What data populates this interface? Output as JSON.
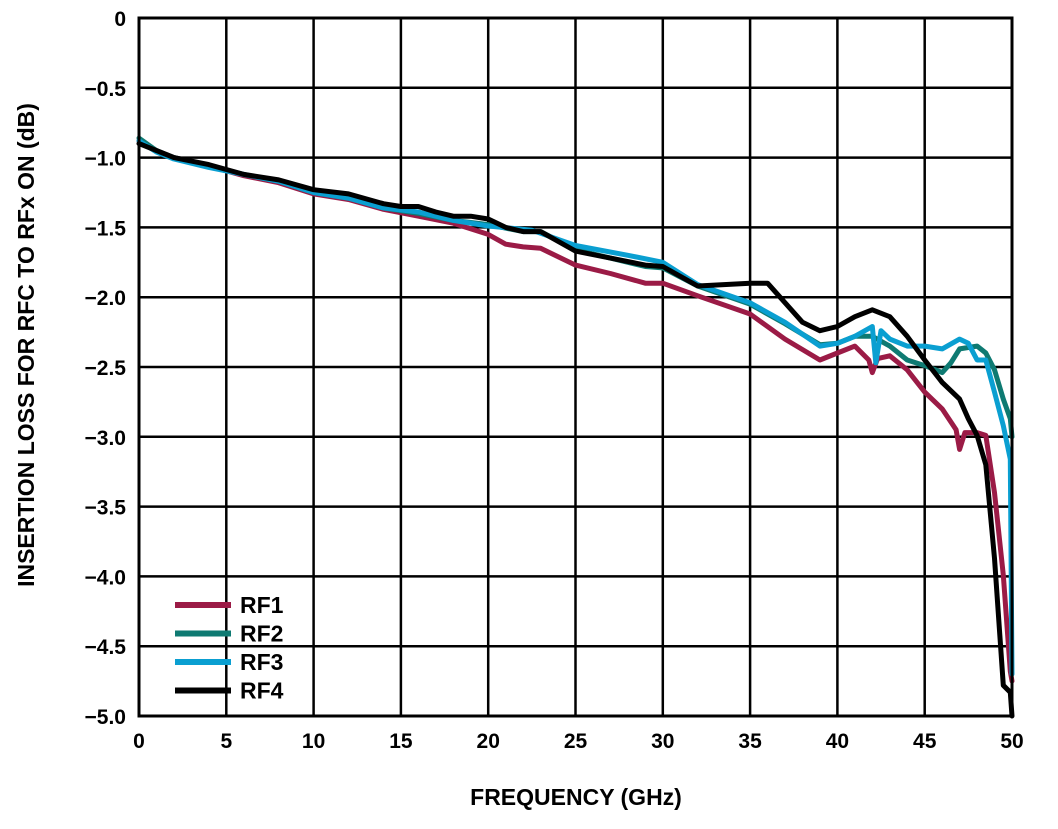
{
  "chart_data": {
    "type": "line",
    "title": "",
    "xlabel": "FREQUENCY (GHz)",
    "ylabel": "INSERTION LOSS FOR RFC TO RFx ON (dB)",
    "xlim": [
      0,
      50
    ],
    "ylim": [
      -5.0,
      0
    ],
    "xticks": [
      "0",
      "5",
      "10",
      "15",
      "20",
      "25",
      "30",
      "35",
      "40",
      "45",
      "50"
    ],
    "yticks": [
      "0",
      "−0.5",
      "−1.0",
      "−1.5",
      "−2.0",
      "−2.5",
      "−3.0",
      "−3.5",
      "−4.0",
      "−4.5",
      "−5.0"
    ],
    "grid": true,
    "legend_position": "bottom-left",
    "series": [
      {
        "name": "RF1",
        "color": "#9b1b46",
        "points": [
          [
            0,
            -0.88
          ],
          [
            1,
            -0.95
          ],
          [
            2,
            -1.0
          ],
          [
            4,
            -1.06
          ],
          [
            6,
            -1.13
          ],
          [
            8,
            -1.18
          ],
          [
            10,
            -1.26
          ],
          [
            12,
            -1.3
          ],
          [
            14,
            -1.37
          ],
          [
            16,
            -1.42
          ],
          [
            18,
            -1.47
          ],
          [
            20,
            -1.55
          ],
          [
            21,
            -1.62
          ],
          [
            22,
            -1.64
          ],
          [
            23,
            -1.65
          ],
          [
            25,
            -1.77
          ],
          [
            27,
            -1.83
          ],
          [
            29,
            -1.9
          ],
          [
            30,
            -1.9
          ],
          [
            32,
            -1.99
          ],
          [
            35,
            -2.12
          ],
          [
            37,
            -2.3
          ],
          [
            39,
            -2.45
          ],
          [
            40,
            -2.4
          ],
          [
            41,
            -2.35
          ],
          [
            41.8,
            -2.45
          ],
          [
            42,
            -2.54
          ],
          [
            42.3,
            -2.44
          ],
          [
            43,
            -2.42
          ],
          [
            44,
            -2.52
          ],
          [
            45,
            -2.68
          ],
          [
            46,
            -2.8
          ],
          [
            46.8,
            -2.95
          ],
          [
            47,
            -3.09
          ],
          [
            47.3,
            -2.97
          ],
          [
            48,
            -2.97
          ],
          [
            48.5,
            -2.99
          ],
          [
            49,
            -3.4
          ],
          [
            49.5,
            -3.99
          ],
          [
            49.9,
            -4.68
          ],
          [
            50,
            -4.75
          ]
        ]
      },
      {
        "name": "RF2",
        "color": "#0e7a72",
        "points": [
          [
            0,
            -0.86
          ],
          [
            1,
            -0.95
          ],
          [
            2,
            -1.0
          ],
          [
            4,
            -1.06
          ],
          [
            6,
            -1.12
          ],
          [
            8,
            -1.17
          ],
          [
            10,
            -1.25
          ],
          [
            12,
            -1.29
          ],
          [
            14,
            -1.36
          ],
          [
            16,
            -1.4
          ],
          [
            18,
            -1.45
          ],
          [
            20,
            -1.48
          ],
          [
            22,
            -1.53
          ],
          [
            23,
            -1.53
          ],
          [
            25,
            -1.66
          ],
          [
            27,
            -1.72
          ],
          [
            29,
            -1.78
          ],
          [
            30,
            -1.79
          ],
          [
            32,
            -1.92
          ],
          [
            35,
            -2.05
          ],
          [
            37,
            -2.19
          ],
          [
            39,
            -2.34
          ],
          [
            40,
            -2.33
          ],
          [
            41,
            -2.28
          ],
          [
            42,
            -2.28
          ],
          [
            43,
            -2.35
          ],
          [
            44,
            -2.45
          ],
          [
            45,
            -2.49
          ],
          [
            46,
            -2.54
          ],
          [
            46.5,
            -2.47
          ],
          [
            47,
            -2.37
          ],
          [
            48,
            -2.35
          ],
          [
            48.5,
            -2.4
          ],
          [
            49,
            -2.52
          ],
          [
            49.5,
            -2.73
          ],
          [
            49.9,
            -2.87
          ],
          [
            50,
            -3.0
          ]
        ]
      },
      {
        "name": "RF3",
        "color": "#0a9fd1",
        "points": [
          [
            0,
            -0.88
          ],
          [
            1,
            -0.96
          ],
          [
            2,
            -1.01
          ],
          [
            4,
            -1.07
          ],
          [
            6,
            -1.12
          ],
          [
            8,
            -1.17
          ],
          [
            10,
            -1.25
          ],
          [
            12,
            -1.29
          ],
          [
            14,
            -1.36
          ],
          [
            16,
            -1.39
          ],
          [
            18,
            -1.45
          ],
          [
            20,
            -1.49
          ],
          [
            22.5,
            -1.52
          ],
          [
            25,
            -1.63
          ],
          [
            28,
            -1.7
          ],
          [
            30,
            -1.75
          ],
          [
            32,
            -1.91
          ],
          [
            35,
            -2.04
          ],
          [
            37,
            -2.18
          ],
          [
            39,
            -2.35
          ],
          [
            40,
            -2.33
          ],
          [
            41,
            -2.28
          ],
          [
            42,
            -2.21
          ],
          [
            42.2,
            -2.47
          ],
          [
            42.5,
            -2.24
          ],
          [
            43,
            -2.3
          ],
          [
            44,
            -2.35
          ],
          [
            45,
            -2.35
          ],
          [
            46,
            -2.37
          ],
          [
            47,
            -2.3
          ],
          [
            47.5,
            -2.33
          ],
          [
            48,
            -2.45
          ],
          [
            48.5,
            -2.45
          ],
          [
            49,
            -2.68
          ],
          [
            49.5,
            -2.92
          ],
          [
            49.9,
            -3.16
          ],
          [
            50,
            -4.7
          ]
        ]
      },
      {
        "name": "RF4",
        "color": "#000000",
        "points": [
          [
            0,
            -0.9
          ],
          [
            2,
            -1.0
          ],
          [
            4,
            -1.05
          ],
          [
            6,
            -1.12
          ],
          [
            8,
            -1.16
          ],
          [
            10,
            -1.23
          ],
          [
            12,
            -1.26
          ],
          [
            14,
            -1.33
          ],
          [
            15,
            -1.35
          ],
          [
            16,
            -1.35
          ],
          [
            17,
            -1.39
          ],
          [
            18,
            -1.42
          ],
          [
            19,
            -1.42
          ],
          [
            20,
            -1.44
          ],
          [
            21,
            -1.5
          ],
          [
            22,
            -1.53
          ],
          [
            23,
            -1.53
          ],
          [
            25,
            -1.67
          ],
          [
            27,
            -1.72
          ],
          [
            29,
            -1.77
          ],
          [
            30,
            -1.78
          ],
          [
            32,
            -1.92
          ],
          [
            35,
            -1.9
          ],
          [
            36,
            -1.9
          ],
          [
            38,
            -2.18
          ],
          [
            39,
            -2.24
          ],
          [
            40,
            -2.21
          ],
          [
            41,
            -2.14
          ],
          [
            42,
            -2.09
          ],
          [
            43,
            -2.14
          ],
          [
            44,
            -2.28
          ],
          [
            45,
            -2.45
          ],
          [
            46,
            -2.61
          ],
          [
            47,
            -2.73
          ],
          [
            47.5,
            -2.87
          ],
          [
            48,
            -2.99
          ],
          [
            48.5,
            -3.2
          ],
          [
            49,
            -3.87
          ],
          [
            49.5,
            -4.78
          ],
          [
            49.9,
            -4.83
          ],
          [
            50,
            -5.0
          ]
        ]
      }
    ]
  }
}
